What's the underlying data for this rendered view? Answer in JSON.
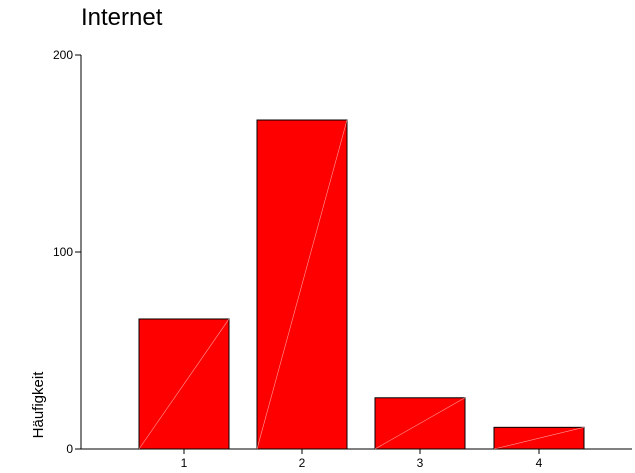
{
  "chart_data": {
    "type": "bar",
    "title": "Internet",
    "xlabel": "",
    "ylabel": "Häufigkeit",
    "categories": [
      "1",
      "2",
      "3",
      "4"
    ],
    "values": [
      66,
      167,
      26,
      11
    ],
    "ylim": [
      0,
      200
    ],
    "yticks": [
      0,
      100,
      200
    ],
    "bar_color": "#ff0000",
    "grid": false,
    "legend": "none"
  }
}
